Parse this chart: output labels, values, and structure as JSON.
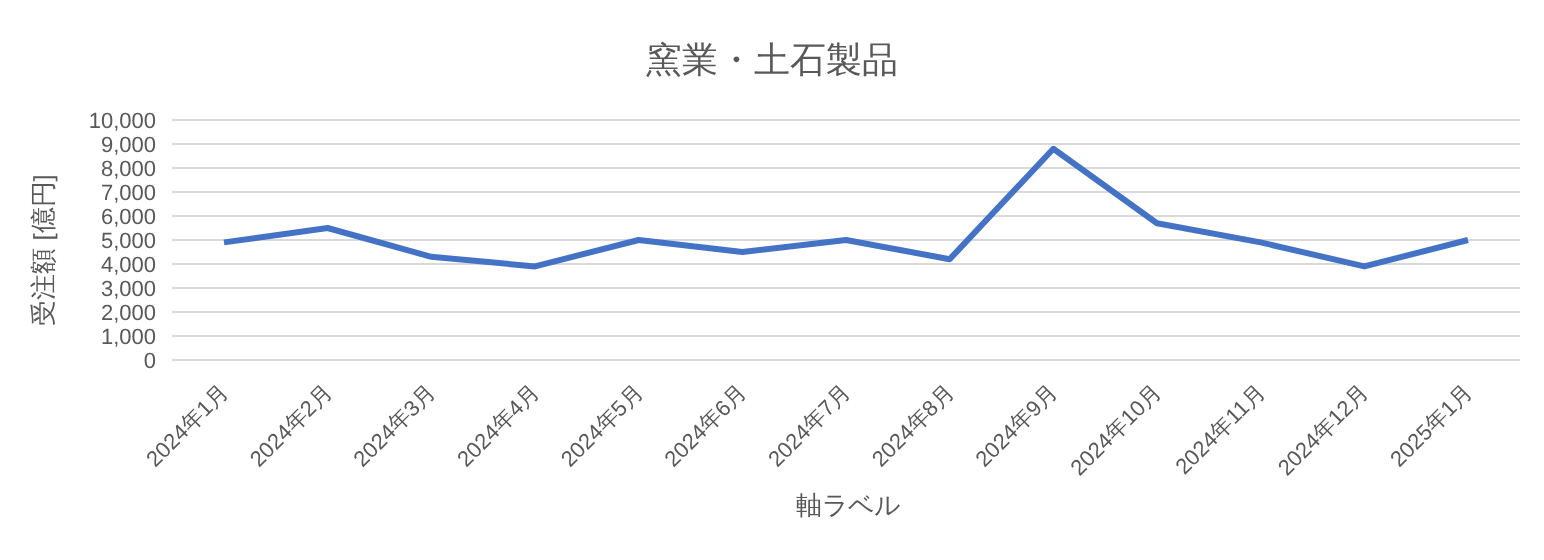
{
  "chart_data": {
    "type": "line",
    "title": "窯業・土石製品",
    "xlabel": "軸ラベル",
    "ylabel": "受注額 [億円]",
    "categories": [
      "2024年1月",
      "2024年2月",
      "2024年3月",
      "2024年4月",
      "2024年5月",
      "2024年6月",
      "2024年7月",
      "2024年8月",
      "2024年9月",
      "2024年10月",
      "2024年11月",
      "2024年12月",
      "2025年1月"
    ],
    "series": [
      {
        "color": "#4472c4",
        "values": [
          4900,
          5500,
          4300,
          3900,
          5000,
          4500,
          5000,
          4200,
          8800,
          5700,
          4900,
          3900,
          5000
        ]
      }
    ],
    "ylim": [
      0,
      10000
    ],
    "yticks": [
      {
        "value": 0,
        "label": "0"
      },
      {
        "value": 1000,
        "label": "1,000"
      },
      {
        "value": 2000,
        "label": "2,000"
      },
      {
        "value": 3000,
        "label": "3,000"
      },
      {
        "value": 4000,
        "label": "4,000"
      },
      {
        "value": 5000,
        "label": "5,000"
      },
      {
        "value": 6000,
        "label": "6,000"
      },
      {
        "value": 7000,
        "label": "7,000"
      },
      {
        "value": 8000,
        "label": "8,000"
      },
      {
        "value": 9000,
        "label": "9,000"
      },
      {
        "value": 10000,
        "label": "10,000"
      }
    ],
    "grid": "y",
    "legend": false,
    "marker": "none",
    "line_style": "solid"
  }
}
